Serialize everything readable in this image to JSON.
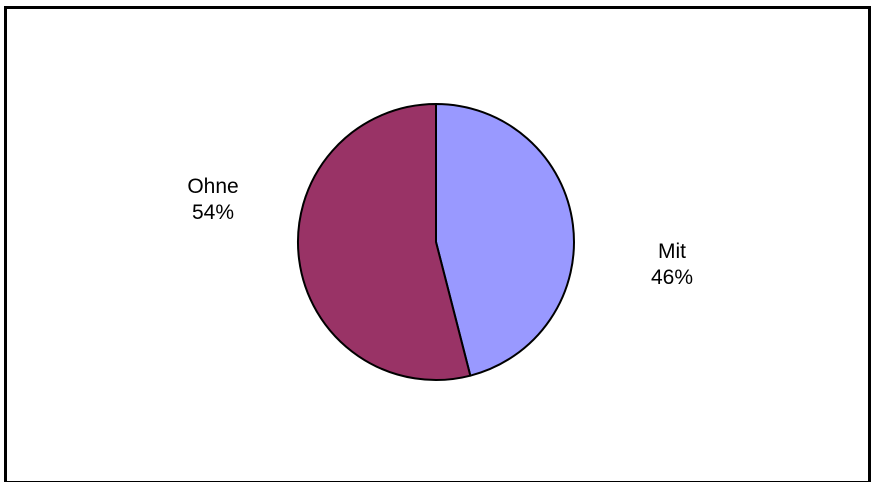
{
  "chart_data": {
    "type": "pie",
    "title": "",
    "start_angle_deg": 0,
    "direction": "clockwise",
    "slices": [
      {
        "name": "Mit",
        "value": 46,
        "value_label": "46%",
        "color": "#9999FF"
      },
      {
        "name": "Ohne",
        "value": 54,
        "value_label": "54%",
        "color": "#993366"
      }
    ],
    "outline_color": "#000000",
    "legend": "none"
  }
}
